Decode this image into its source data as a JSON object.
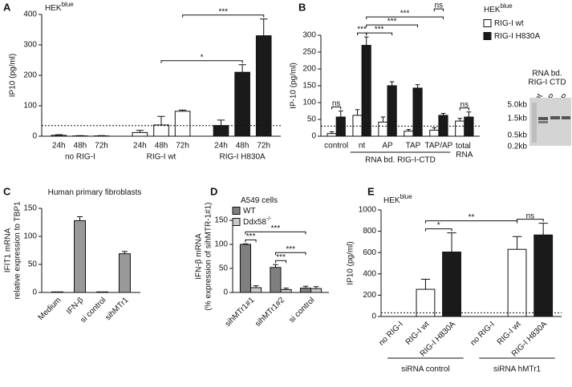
{
  "chart_data": [
    {
      "panel": "A",
      "type": "bar",
      "title": "HEK",
      "title_superscript": "blue",
      "ylabel": [
        "IP10 (pg/ml)"
      ],
      "categories": [
        "24h",
        "48h",
        "72h",
        "24h",
        "48h",
        "72h",
        "24h",
        "48h",
        "72h"
      ],
      "values": [
        3,
        1,
        1,
        12,
        37,
        82,
        35,
        210,
        330
      ],
      "errors": [
        2,
        1,
        1,
        7,
        28,
        4,
        18,
        25,
        55
      ],
      "colors": [
        "#ffffff",
        "#ffffff",
        "#ffffff",
        "#ffffff",
        "#ffffff",
        "#ffffff",
        "#1a1a1a",
        "#1a1a1a",
        "#1a1a1a"
      ],
      "groups": [
        {
          "label": "no RIG-I",
          "from": 0,
          "to": 2
        },
        {
          "label": "RIG-I wt",
          "from": 3,
          "to": 5
        },
        {
          "label": "RIG-I H830A",
          "from": 6,
          "to": 8
        }
      ],
      "ylim": [
        0,
        400
      ],
      "yticks": [
        0,
        100,
        200,
        300,
        400
      ],
      "threshold": 35,
      "brackets": [
        {
          "text": "*",
          "from": [
            4,
            0
          ],
          "to": [
            7,
            0
          ]
        },
        {
          "text": "***",
          "from": [
            5,
            0
          ],
          "to": [
            8,
            0
          ]
        }
      ]
    },
    {
      "panel": "B",
      "type": "bar",
      "title": "HEK",
      "title_superscript": "blue",
      "ylabel": [
        "IP-10 (pg/ml)"
      ],
      "categories": [
        "control",
        "nt",
        "AP",
        "TAP",
        "TAP/AP",
        "total RNA"
      ],
      "series": [
        {
          "name": "RIG-I wt",
          "color": "#ffffff",
          "values": [
            8,
            62,
            42,
            15,
            18,
            45
          ],
          "errors": [
            5,
            17,
            15,
            5,
            7,
            8
          ]
        },
        {
          "name": "RIG-I H830A",
          "color": "#1a1a1a",
          "values": [
            57,
            270,
            150,
            143,
            62,
            57
          ],
          "errors": [
            18,
            25,
            12,
            10,
            6,
            15
          ]
        }
      ],
      "groups": [
        {
          "label": "RNA bd. RIG-I-CTD",
          "from": 1,
          "to": 4
        }
      ],
      "ylim": [
        0,
        300
      ],
      "yticks": [
        0,
        50,
        100,
        150,
        200,
        250,
        300
      ],
      "threshold": 30,
      "brackets": [
        {
          "text": "ns",
          "from": [
            0,
            0
          ],
          "to": [
            0,
            1
          ]
        },
        {
          "text": "***",
          "from": [
            1,
            0
          ],
          "to": [
            1,
            1
          ]
        },
        {
          "text": "***",
          "from": [
            1,
            1
          ],
          "to": [
            2,
            1
          ]
        },
        {
          "text": "***",
          "from": [
            1,
            1
          ],
          "to": [
            3,
            1
          ]
        },
        {
          "text": "***",
          "from": [
            1,
            1
          ],
          "to": [
            4,
            1
          ]
        },
        {
          "text": "ns",
          "from": [
            4,
            0
          ],
          "to": [
            4,
            1
          ]
        },
        {
          "text": "ns",
          "from": [
            5,
            0
          ],
          "to": [
            5,
            1
          ]
        }
      ]
    },
    {
      "panel": "C",
      "type": "bar",
      "title": "Human primary fibroblasts",
      "ylabel": [
        "IFIT1  mRNA",
        "relative expression to TBP1"
      ],
      "categories": [
        "Medium",
        "IFN-β",
        "si control",
        "sihMTr1"
      ],
      "values": [
        1,
        128,
        1,
        69
      ],
      "errors": [
        null,
        7,
        null,
        4
      ],
      "colors": [
        "#999999",
        "#999999",
        "#999999",
        "#999999"
      ],
      "ylim": [
        0,
        150
      ],
      "yticks": [
        0,
        50,
        100,
        150
      ]
    },
    {
      "panel": "D",
      "type": "bar",
      "title": "A549 cells",
      "ylabel": [
        "IFN-β mRNA",
        "(% expression of sihMTR-1#1)"
      ],
      "categories": [
        "sihMTr1#1",
        "sihMTr1#2",
        "si control"
      ],
      "series": [
        {
          "name": "WT",
          "color": "#7f7f7f",
          "values": [
            100,
            52,
            9
          ],
          "errors": [
            1,
            6,
            4
          ]
        },
        {
          "name": "Ddx58",
          "name_superscript": "-/-",
          "color": "#c8c8c8",
          "values": [
            10,
            6,
            8
          ],
          "errors": [
            4,
            3,
            4
          ]
        }
      ],
      "ylim": [
        0,
        150
      ],
      "yticks": [
        0,
        50,
        100,
        150
      ],
      "brackets": [
        {
          "text": "***",
          "from": [
            0,
            0
          ],
          "to": [
            0,
            1
          ]
        },
        {
          "text": "***",
          "from": [
            1,
            0
          ],
          "to": [
            1,
            1
          ]
        },
        {
          "text": "***",
          "from": [
            1,
            0
          ],
          "to": [
            2,
            0
          ]
        },
        {
          "text": "***",
          "from": [
            0,
            0
          ],
          "to": [
            2,
            0
          ]
        }
      ]
    },
    {
      "panel": "E",
      "type": "bar",
      "title": "HEK",
      "title_superscript": "blue",
      "ylabel": [
        "IP10 (pg/ml)"
      ],
      "categories": [
        "no RIG-I",
        "RIG-I wt",
        "RIG-I H830A",
        "no RIG-I",
        "RIG-I wt",
        "RIG-I H830A"
      ],
      "values": [
        0,
        255,
        605,
        0,
        630,
        765
      ],
      "errors": [
        null,
        95,
        180,
        null,
        120,
        110
      ],
      "colors": [
        "#ffffff",
        "#ffffff",
        "#1a1a1a",
        "#ffffff",
        "#ffffff",
        "#1a1a1a"
      ],
      "groups": [
        {
          "label": "siRNA control",
          "from": 0,
          "to": 2
        },
        {
          "label": "siRNA hMTr1",
          "from": 3,
          "to": 5
        }
      ],
      "ylim": [
        0,
        1000
      ],
      "yticks": [
        0,
        200,
        400,
        600,
        800,
        1000
      ],
      "threshold": 35,
      "brackets": [
        {
          "text": "*",
          "from": [
            1,
            0
          ],
          "to": [
            2,
            0
          ]
        },
        {
          "text": "**",
          "from": [
            1,
            0
          ],
          "to": [
            4,
            0
          ]
        },
        {
          "text": "ns",
          "from": [
            4,
            0
          ],
          "to": [
            5,
            0
          ]
        }
      ]
    }
  ],
  "gel": {
    "title": [
      "RNA bd.",
      "RIG-I CTD"
    ],
    "lanes": [
      "nt",
      "AP",
      "TAP"
    ],
    "markers": [
      "5.0kb",
      "1.5kb",
      "0.5kb",
      "0.2kb"
    ]
  }
}
